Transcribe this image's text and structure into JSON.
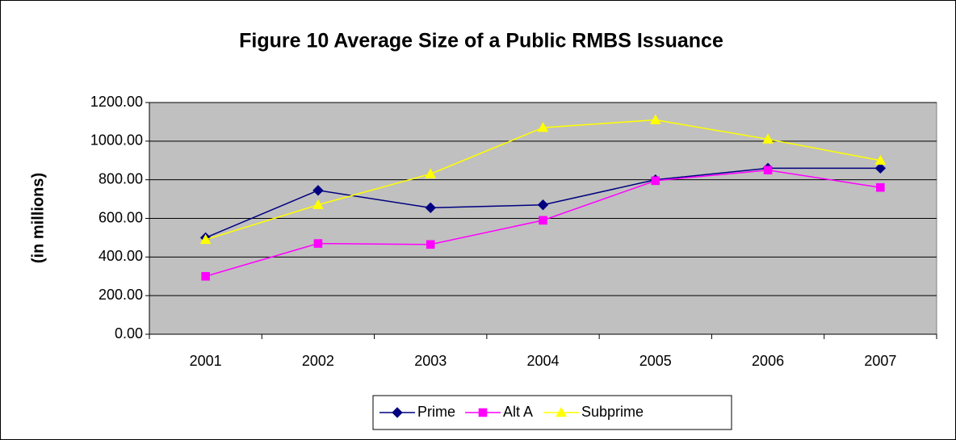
{
  "chart_data": {
    "type": "line",
    "title": "Figure 10 Average Size of a Public RMBS Issuance",
    "y_label": "(in millions)",
    "categories": [
      "2001",
      "2002",
      "2003",
      "2004",
      "2005",
      "2006",
      "2007"
    ],
    "series": [
      {
        "name": "Prime",
        "color": "#000080",
        "marker": "diamond",
        "values": [
          500,
          745,
          655,
          670,
          800,
          860,
          860
        ]
      },
      {
        "name": "Alt A",
        "color": "#ff00ff",
        "marker": "square",
        "values": [
          300,
          470,
          465,
          590,
          795,
          850,
          760
        ]
      },
      {
        "name": "Subprime",
        "color": "#ffff00",
        "marker": "triangle",
        "values": [
          490,
          670,
          830,
          1070,
          1110,
          1010,
          900
        ]
      }
    ],
    "ylim": [
      0,
      1200
    ],
    "yticks": [
      {
        "value": 0,
        "label": "0.00"
      },
      {
        "value": 200,
        "label": "200.00"
      },
      {
        "value": 400,
        "label": "400.00"
      },
      {
        "value": 600,
        "label": "600.00"
      },
      {
        "value": 800,
        "label": "800.00"
      },
      {
        "value": 1000,
        "label": "1000.00"
      },
      {
        "value": 1200,
        "label": "1200.00"
      }
    ],
    "grid": true,
    "legend": "bottom",
    "plot_background": "#c0c0c0"
  }
}
